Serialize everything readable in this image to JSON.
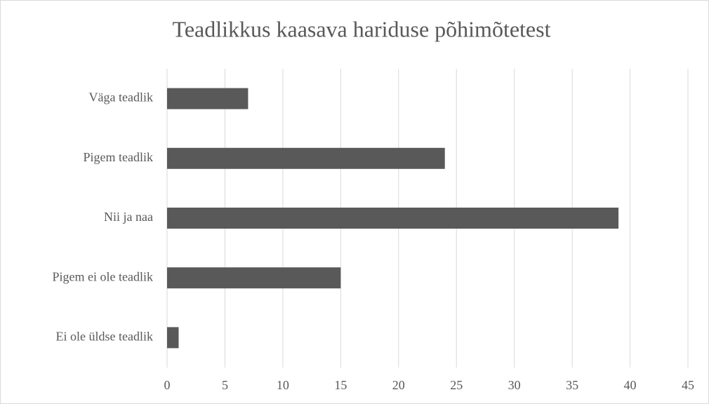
{
  "chart_data": {
    "type": "bar",
    "title": "Teadlikkus kaasava hariduse põhimõtetest",
    "categories": [
      "Väga teadlik",
      "Pigem teadlik",
      "Nii ja naa",
      "Pigem ei ole teadlik",
      "Ei ole üldse teadlik"
    ],
    "values": [
      7,
      24,
      39,
      15,
      1
    ],
    "color": "#595959",
    "xlim": [
      0,
      45
    ],
    "xticks": [
      0,
      5,
      10,
      15,
      20,
      25,
      30,
      35,
      40,
      45
    ],
    "grid": true
  }
}
